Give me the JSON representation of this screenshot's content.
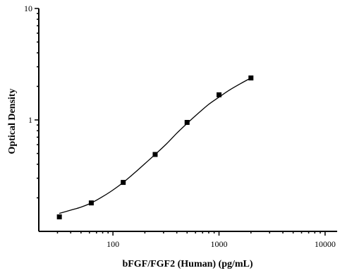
{
  "chart_data": {
    "type": "scatter",
    "xlabel": "bFGF/FGF2 (Human) (pg/mL)",
    "ylabel": "Optical Density",
    "x_scale": "log",
    "y_scale": "log",
    "xlim": [
      20,
      13000
    ],
    "ylim": [
      0.1,
      10
    ],
    "x_ticks": [
      100,
      1000,
      10000
    ],
    "x_tick_labels": [
      "100",
      "1000",
      "10000"
    ],
    "y_ticks": [
      1,
      10
    ],
    "y_tick_labels": [
      "1",
      "10"
    ],
    "grid": false,
    "legend": "none",
    "series": [
      {
        "x": [
          31.25,
          62.5,
          125,
          250,
          500,
          1000,
          2000
        ],
        "y": [
          0.135,
          0.18,
          0.275,
          0.49,
          0.95,
          1.68,
          2.38
        ],
        "marker": "square",
        "color": "#000000"
      }
    ],
    "fit_curve": {
      "x": [
        31.25,
        40,
        50,
        62.5,
        80,
        100,
        125,
        160,
        200,
        250,
        320,
        400,
        500,
        640,
        800,
        1000,
        1250,
        1600,
        2000
      ],
      "y": [
        0.145,
        0.155,
        0.165,
        0.18,
        0.205,
        0.235,
        0.275,
        0.335,
        0.405,
        0.49,
        0.61,
        0.76,
        0.93,
        1.15,
        1.38,
        1.6,
        1.85,
        2.12,
        2.38
      ],
      "color": "#000000"
    }
  }
}
